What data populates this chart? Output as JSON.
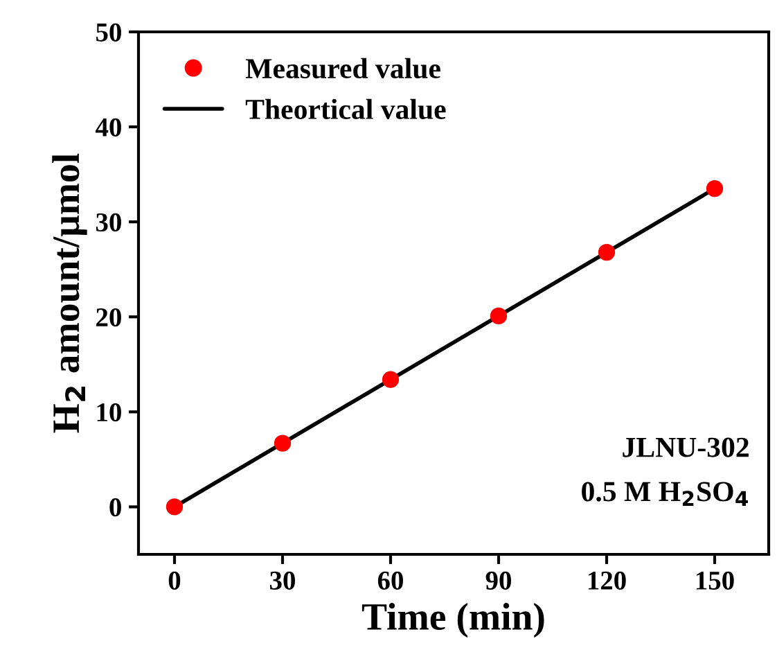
{
  "chart_data": {
    "type": "line",
    "xlabel": "Time (min)",
    "ylabel": "H$_{2}$ amount/μmol",
    "series": [
      {
        "name": "Measured value",
        "type": "scatter",
        "color": "#ff0000",
        "x": [
          0,
          30,
          60,
          90,
          120,
          150
        ],
        "values": [
          0,
          6.7,
          13.4,
          20.1,
          26.8,
          33.5
        ],
        "marker": "circle"
      },
      {
        "name": "Theortical value",
        "color": "#000000",
        "x": [
          0,
          150
        ],
        "values": [
          0,
          33.5
        ],
        "marker": "none",
        "line_style": "solid"
      }
    ],
    "xlim": [
      -10,
      165
    ],
    "xticks": [
      0,
      30,
      60,
      90,
      120,
      150
    ],
    "ylim": [
      -5,
      50
    ],
    "yticks": [
      0,
      10,
      20,
      30,
      40,
      50
    ],
    "annotations": [
      "JLNU-302",
      "0.5 M H$_{2}$SO$_{4}$"
    ],
    "legend": "top left",
    "grid": false
  }
}
